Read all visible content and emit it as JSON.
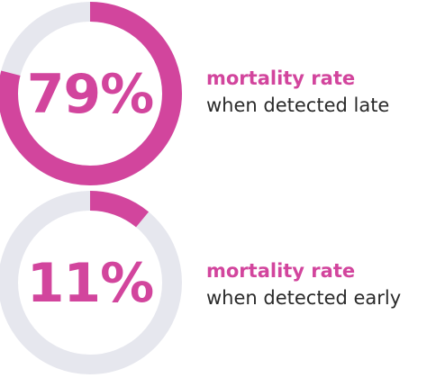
{
  "chart_data": [
    {
      "type": "donut",
      "value": 79,
      "max": 100,
      "value_label": "79%",
      "heading": "mortality rate",
      "subheading": "when detected late",
      "colors": {
        "filled": "#d2459d",
        "track": "#e6e7ee"
      }
    },
    {
      "type": "donut",
      "value": 11,
      "max": 100,
      "value_label": "11%",
      "heading": "mortality rate",
      "subheading": "when detected early",
      "colors": {
        "filled": "#d2459d",
        "track": "#e6e7ee"
      }
    }
  ],
  "colors": {
    "accent": "#d2459d",
    "track": "#e6e7ee",
    "text": "#2a2a2a"
  }
}
